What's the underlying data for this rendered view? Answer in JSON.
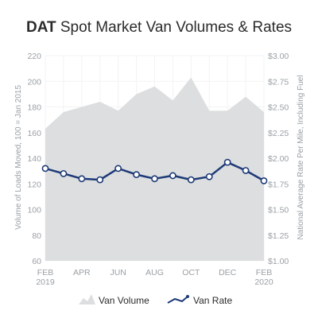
{
  "title": {
    "brand": "DAT",
    "text": " Spot Market Van Volumes & Rates"
  },
  "colors": {
    "area": "#dcdedf",
    "line": "#1e3a78",
    "grid": "#f2f3f4",
    "axis_text": "#9aa0a5",
    "title_text": "#2b2b2b"
  },
  "chart_data": {
    "type": "line",
    "title": "DAT Spot Market Van Volumes & Rates",
    "x_tick_labels": [
      [
        "FEB",
        "2019"
      ],
      [
        "APR",
        ""
      ],
      [
        "JUN",
        ""
      ],
      [
        "AUG",
        ""
      ],
      [
        "OCT",
        ""
      ],
      [
        "DEC",
        ""
      ],
      [
        "FEB",
        "2020"
      ]
    ],
    "months": [
      "Feb 2019",
      "Mar 2019",
      "Apr 2019",
      "May 2019",
      "Jun 2019",
      "Jul 2019",
      "Aug 2019",
      "Sep 2019",
      "Oct 2019",
      "Nov 2019",
      "Dec 2019",
      "Jan 2020",
      "Feb 2020"
    ],
    "ylabel_left": "Volume of Loads Moved, 100 = Jan 2015",
    "ylabel_right": "National Average Rate Per Mile, Including Fuel",
    "y_left_ticks": [
      "220",
      "200",
      "180",
      "160",
      "140",
      "120",
      "100",
      "80",
      "60"
    ],
    "y_right_ticks": [
      "$3.00",
      "$2.75",
      "$2.50",
      "$2.25",
      "$2.00",
      "$1.75",
      "$1.50",
      "$1.25",
      "$1.00"
    ],
    "ylim_left": [
      60,
      220
    ],
    "ylim_right": [
      1.0,
      3.0
    ],
    "grid": true,
    "legend_position": "bottom",
    "series": [
      {
        "name": "Van Volume",
        "type": "area",
        "axis": "left",
        "values": [
          163,
          176,
          180,
          184,
          177,
          190,
          196,
          185,
          203,
          177,
          177,
          188,
          176
        ]
      },
      {
        "name": "Van Rate",
        "type": "line",
        "axis": "right",
        "values": [
          1.9,
          1.85,
          1.8,
          1.79,
          1.9,
          1.84,
          1.8,
          1.83,
          1.79,
          1.82,
          1.96,
          1.88,
          1.78
        ]
      }
    ]
  },
  "legend": {
    "items": [
      {
        "label": "Van Volume"
      },
      {
        "label": "Van Rate"
      }
    ]
  }
}
